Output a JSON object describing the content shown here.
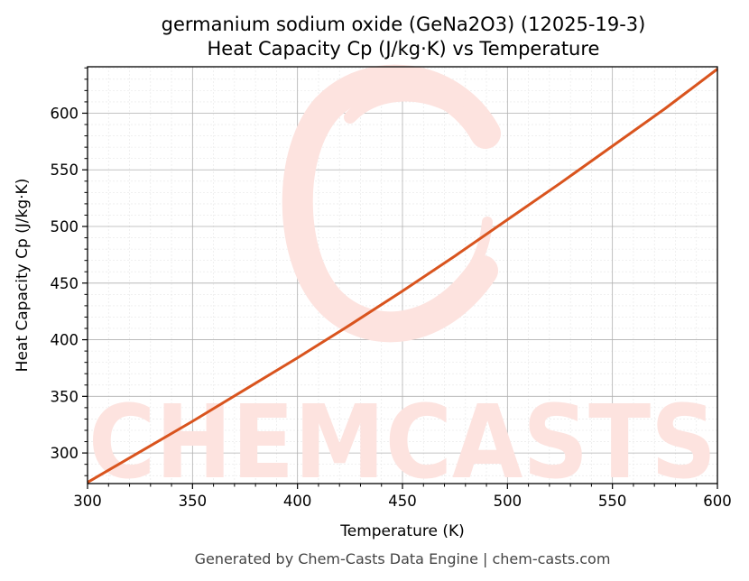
{
  "chart_data": {
    "type": "line",
    "title": "germanium sodium oxide (GeNa2O3) (12025-19-3)",
    "subtitle": "Heat Capacity Cp (J/kg·K) vs Temperature",
    "xlabel": "Temperature (K)",
    "ylabel": "Heat Capacity Cp (J/kg·K)",
    "xlim": [
      300,
      600
    ],
    "ylim": [
      273,
      641
    ],
    "xticks": [
      300,
      350,
      400,
      450,
      500,
      550,
      600
    ],
    "yticks": [
      300,
      350,
      400,
      450,
      500,
      550,
      600
    ],
    "grid": true,
    "line_color": "#d9541e",
    "series": [
      {
        "x": [
          300,
          325,
          350,
          375,
          400,
          425,
          450,
          475,
          500,
          525,
          550,
          575,
          600
        ],
        "values": [
          274,
          301,
          328,
          356,
          384,
          413,
          443,
          474,
          506,
          538,
          571,
          604,
          639
        ]
      }
    ]
  },
  "watermark": {
    "text": "CHEMCASTS",
    "color": "#fde3df"
  },
  "footer": "Generated by Chem-Casts Data Engine | chem-casts.com"
}
